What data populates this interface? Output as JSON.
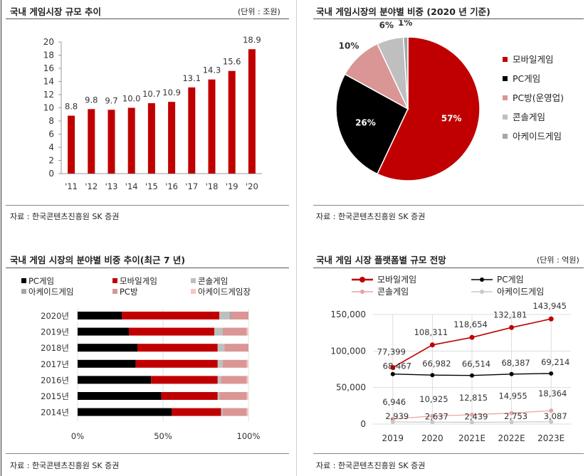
{
  "colors": {
    "mobile": "#c00000",
    "pc": "#000000",
    "pcbang": "#d99694",
    "console": "#bfbfbf",
    "arcade": "#a6a6a6",
    "arcade_room": "#f4c7c3",
    "bar": "#c00000",
    "line_pc": "#000000",
    "line_console": "#e8a2a2",
    "line_arcade": "#c8c8c8"
  },
  "panel1": {
    "title": "국내 게임시장 규모 추이",
    "unit": "(단위 : 조원)",
    "source": "자료 : 한국콘텐츠진흥원 SK 증권"
  },
  "panel2": {
    "title": "국내 게임시장의 분야별 비중 (2020 년 기준)",
    "source": "자료 : 한국콘텐츠진흥원 SK 증권"
  },
  "panel3": {
    "title": "국내 게임 시장의 분야별 비중 추이(최근 7 년)",
    "source": "자료 : 한국콘텐츠진흥원 SK 증권"
  },
  "panel4": {
    "title": "국내 게임 시장 플랫폼별 규모 전망",
    "unit": "(단위 : 억원)",
    "source": "자료 : 한국콘텐츠진흥원 SK 증권"
  },
  "chart_data": [
    {
      "type": "bar",
      "categories": [
        "'11",
        "'12",
        "'13",
        "'14",
        "'15",
        "'16",
        "'17",
        "'18",
        "'19",
        "'20"
      ],
      "values": [
        8.8,
        9.8,
        9.7,
        10.0,
        10.7,
        10.9,
        13.1,
        14.3,
        15.6,
        18.9
      ],
      "value_labels": [
        "8.8",
        "9.8",
        "9.7",
        "10.0",
        "10.7",
        "10.9",
        "13.1",
        "14.3",
        "15.6",
        "18.9"
      ],
      "ylim": [
        0,
        20
      ],
      "yticks": [
        "0",
        "2",
        "4",
        "6",
        "8",
        "10",
        "12",
        "14",
        "16",
        "18",
        "20"
      ]
    },
    {
      "type": "pie",
      "labels": [
        "모바일게임",
        "PC게임",
        "PC방(운영업)",
        "콘솔게임",
        "아케이드게임"
      ],
      "values": [
        57,
        26,
        10,
        6,
        1
      ],
      "value_labels": [
        "57%",
        "26%",
        "10%",
        "6%",
        "1%"
      ],
      "legend": "right"
    },
    {
      "type": "bar",
      "orientation": "horizontal",
      "stacked": true,
      "categories": [
        "2020년",
        "2019년",
        "2018년",
        "2017년",
        "2016년",
        "2015년",
        "2014년"
      ],
      "series": [
        {
          "name": "PC게임",
          "values": [
            26,
            30,
            35,
            34,
            43,
            49,
            55
          ]
        },
        {
          "name": "모바일게임",
          "values": [
            57,
            50,
            47,
            48,
            39,
            33,
            29
          ]
        },
        {
          "name": "콘솔게임",
          "values": [
            6,
            5,
            4,
            3,
            2,
            1,
            1
          ]
        },
        {
          "name": "아케이드게임",
          "values": [
            1,
            0,
            0,
            0,
            0,
            0,
            0
          ]
        },
        {
          "name": "PC방",
          "values": [
            10,
            14,
            14,
            14,
            15,
            16,
            14
          ]
        },
        {
          "name": "아케이드게임장",
          "values": [
            0,
            1,
            0,
            1,
            1,
            1,
            1
          ]
        }
      ],
      "xticks": [
        "0%",
        "50%",
        "100%"
      ],
      "xlim": [
        0,
        100
      ],
      "legend": "top"
    },
    {
      "type": "line",
      "x": [
        "2019",
        "2020",
        "2021E",
        "2022E",
        "2023E"
      ],
      "series": [
        {
          "name": "모바일게임",
          "values": [
            77399,
            108311,
            118654,
            132181,
            143945
          ],
          "labels": [
            "77,399",
            "108,311",
            "118,654",
            "132,181",
            "143,945"
          ]
        },
        {
          "name": "PC게임",
          "values": [
            68467,
            66982,
            66514,
            68387,
            69214
          ],
          "labels": [
            "68,467",
            "66,982",
            "66,514",
            "68,387",
            "69,214"
          ]
        },
        {
          "name": "콘솔게임",
          "values": [
            6946,
            10925,
            12815,
            14955,
            18364
          ],
          "labels": [
            "6,946",
            "10,925",
            "12,815",
            "14,955",
            "18,364"
          ]
        },
        {
          "name": "아케이드게임",
          "values": [
            2939,
            2637,
            2439,
            2753,
            3087
          ],
          "labels": [
            "2,939",
            "2,637",
            "2,439",
            "2,753",
            "3,087"
          ]
        }
      ],
      "ylim": [
        0,
        150000
      ],
      "yticks": [
        "0",
        "50,000",
        "100,000",
        "150,000"
      ],
      "grid": true,
      "legend": "top"
    }
  ]
}
